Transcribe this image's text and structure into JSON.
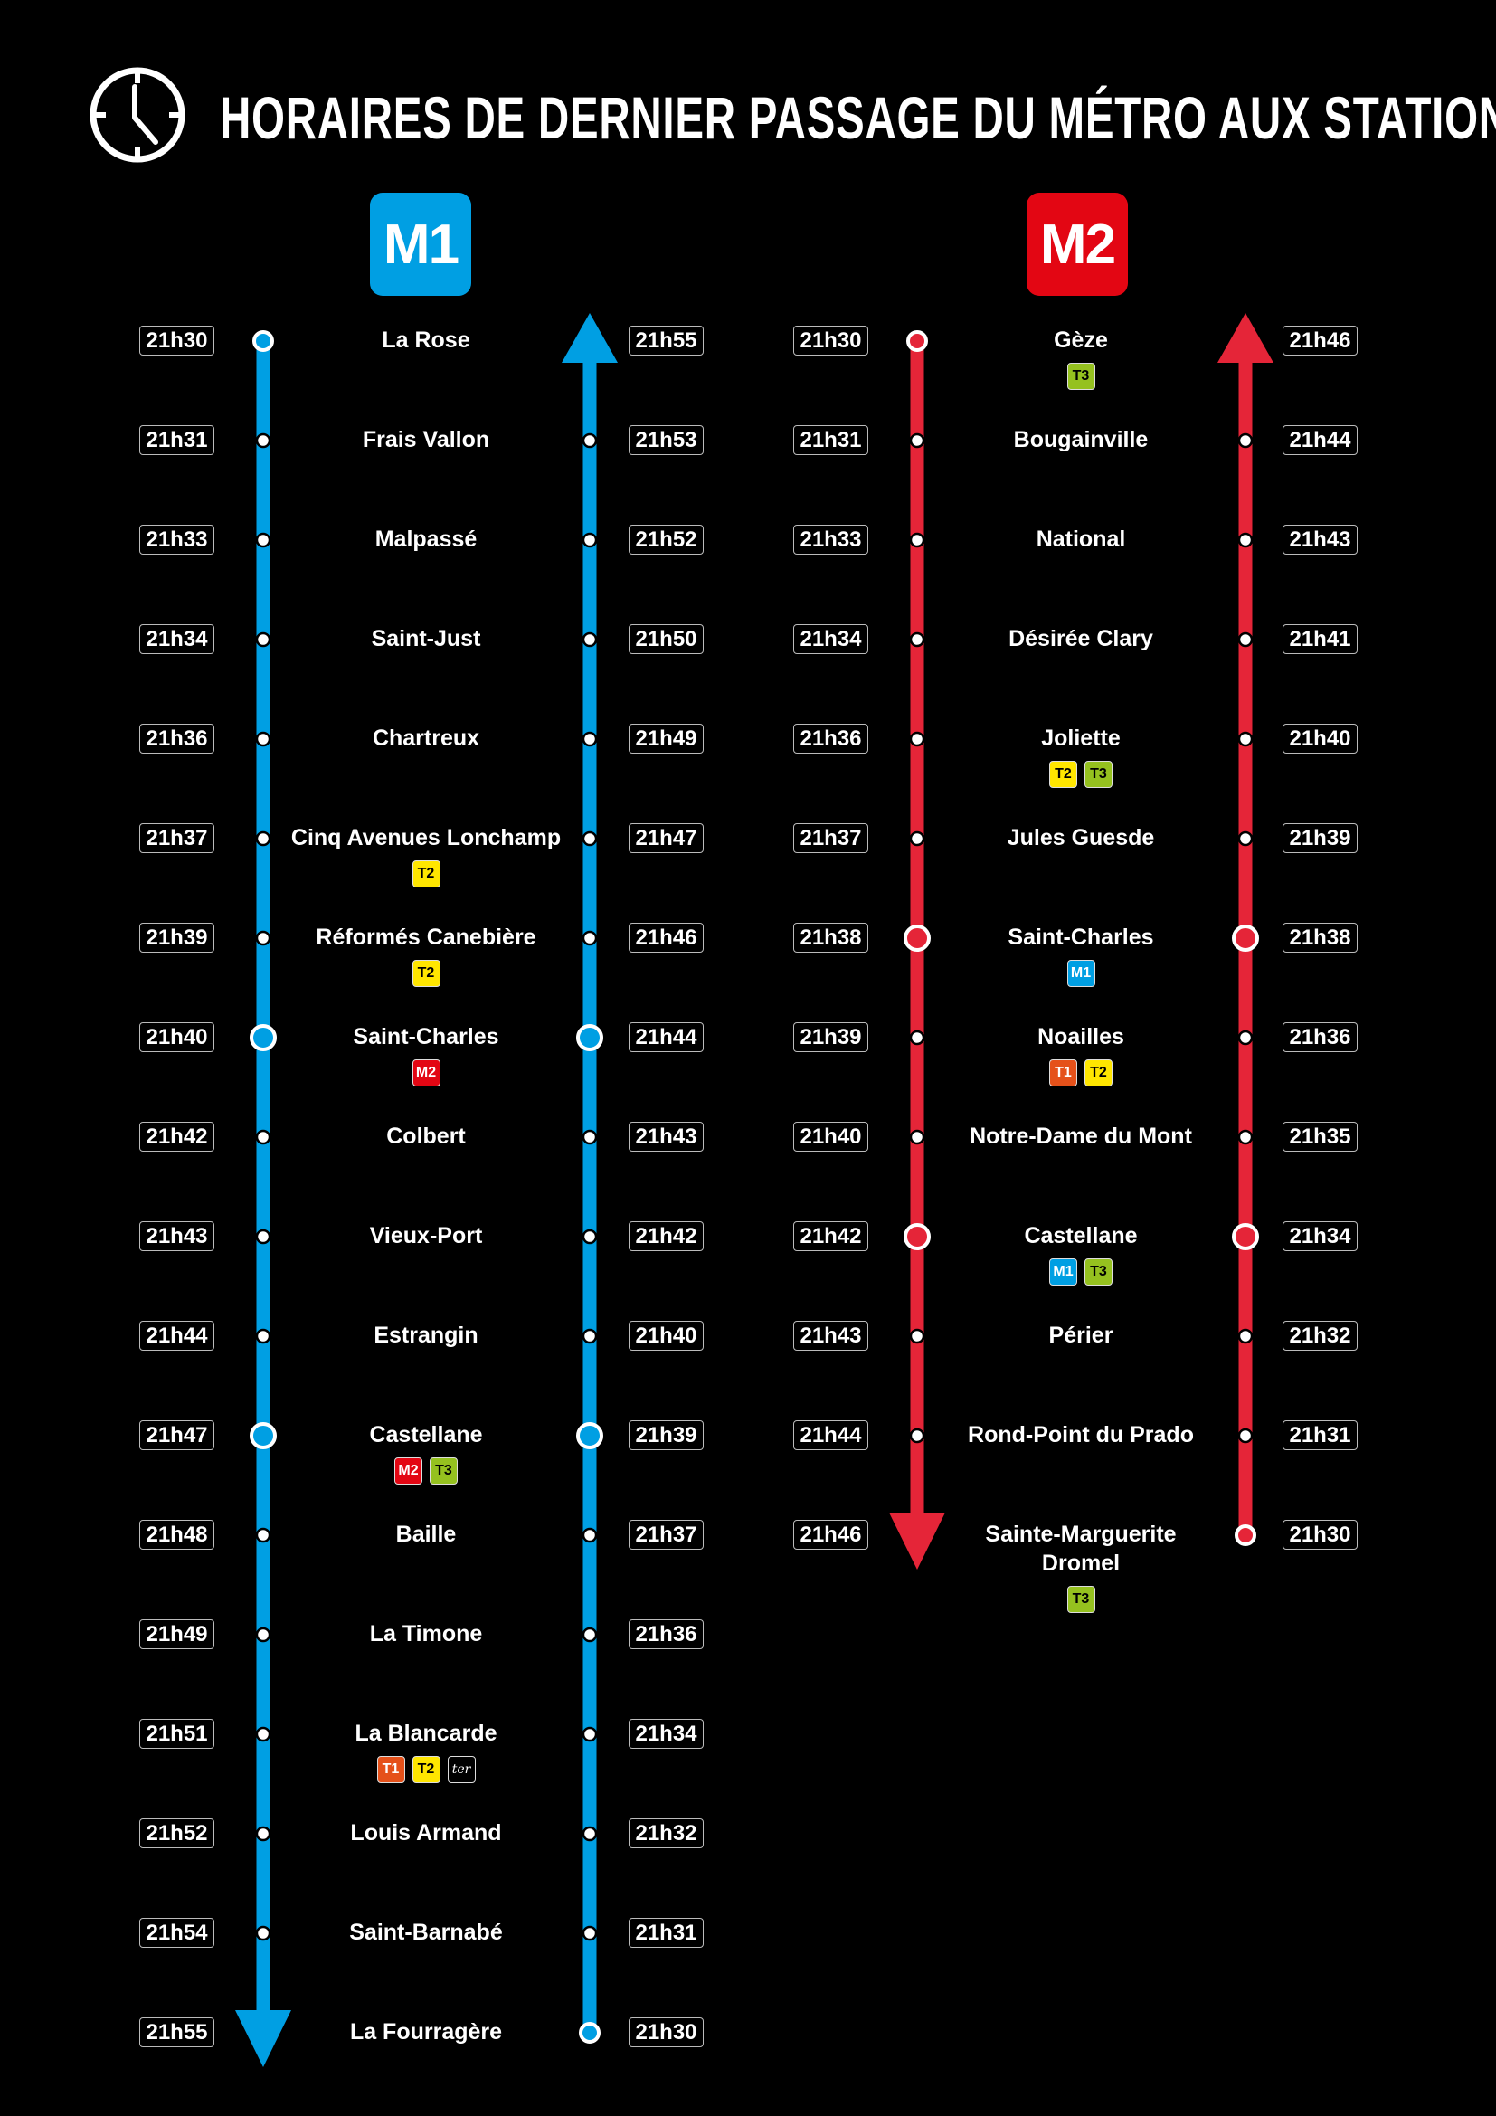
{
  "title": "HORAIRES DE DERNIER PASSAGE DU MÉTRO AUX STATIONS",
  "title_icon": "clock-icon",
  "colors": {
    "M1": "#009fe3",
    "M2": "#e52538",
    "M2_badge": "#e30613",
    "T1": "#e5511a",
    "T2": "#ffe600",
    "T3": "#95c11f",
    "ter": "#000000"
  },
  "lines": [
    {
      "label": "M1",
      "stations": [
        {
          "name": "La Rose",
          "down": "21h30",
          "up": "21h55",
          "conn": []
        },
        {
          "name": "Frais Vallon",
          "down": "21h31",
          "up": "21h53",
          "conn": []
        },
        {
          "name": "Malpassé",
          "down": "21h33",
          "up": "21h52",
          "conn": []
        },
        {
          "name": "Saint-Just",
          "down": "21h34",
          "up": "21h50",
          "conn": []
        },
        {
          "name": "Chartreux",
          "down": "21h36",
          "up": "21h49",
          "conn": []
        },
        {
          "name": "Cinq Avenues Lonchamp",
          "down": "21h37",
          "up": "21h47",
          "conn": [
            "T2"
          ]
        },
        {
          "name": "Réformés Canebière",
          "down": "21h39",
          "up": "21h46",
          "conn": [
            "T2"
          ]
        },
        {
          "name": "Saint-Charles",
          "down": "21h40",
          "up": "21h44",
          "conn": [
            "M2"
          ],
          "interchange": true
        },
        {
          "name": "Colbert",
          "down": "21h42",
          "up": "21h43",
          "conn": []
        },
        {
          "name": "Vieux-Port",
          "down": "21h43",
          "up": "21h42",
          "conn": []
        },
        {
          "name": "Estrangin",
          "down": "21h44",
          "up": "21h40",
          "conn": []
        },
        {
          "name": "Castellane",
          "down": "21h47",
          "up": "21h39",
          "conn": [
            "M2",
            "T3"
          ],
          "interchange": true
        },
        {
          "name": "Baille",
          "down": "21h48",
          "up": "21h37",
          "conn": []
        },
        {
          "name": "La Timone",
          "down": "21h49",
          "up": "21h36",
          "conn": []
        },
        {
          "name": "La Blancarde",
          "down": "21h51",
          "up": "21h34",
          "conn": [
            "T1",
            "T2",
            "ter"
          ]
        },
        {
          "name": "Louis Armand",
          "down": "21h52",
          "up": "21h32",
          "conn": []
        },
        {
          "name": "Saint-Barnabé",
          "down": "21h54",
          "up": "21h31",
          "conn": []
        },
        {
          "name": "La Fourragère",
          "down": "21h55",
          "up": "21h30",
          "conn": []
        }
      ]
    },
    {
      "label": "M2",
      "stations": [
        {
          "name": "Gèze",
          "down": "21h30",
          "up": "21h46",
          "conn": [
            "T3"
          ]
        },
        {
          "name": "Bougainville",
          "down": "21h31",
          "up": "21h44",
          "conn": []
        },
        {
          "name": "National",
          "down": "21h33",
          "up": "21h43",
          "conn": []
        },
        {
          "name": "Désirée Clary",
          "down": "21h34",
          "up": "21h41",
          "conn": []
        },
        {
          "name": "Joliette",
          "down": "21h36",
          "up": "21h40",
          "conn": [
            "T2",
            "T3"
          ]
        },
        {
          "name": "Jules Guesde",
          "down": "21h37",
          "up": "21h39",
          "conn": []
        },
        {
          "name": "Saint-Charles",
          "down": "21h38",
          "up": "21h38",
          "conn": [
            "M1"
          ],
          "interchange": true
        },
        {
          "name": "Noailles",
          "down": "21h39",
          "up": "21h36",
          "conn": [
            "T1",
            "T2"
          ]
        },
        {
          "name": "Notre-Dame du Mont",
          "down": "21h40",
          "up": "21h35",
          "conn": []
        },
        {
          "name": "Castellane",
          "down": "21h42",
          "up": "21h34",
          "conn": [
            "M1",
            "T3"
          ],
          "interchange": true
        },
        {
          "name": "Périer",
          "down": "21h43",
          "up": "21h32",
          "conn": []
        },
        {
          "name": "Rond-Point du Prado",
          "down": "21h44",
          "up": "21h31",
          "conn": []
        },
        {
          "name": "Sainte-Marguerite Dromel",
          "down": "21h46",
          "up": "21h30",
          "conn": [
            "T3"
          ]
        }
      ]
    }
  ]
}
